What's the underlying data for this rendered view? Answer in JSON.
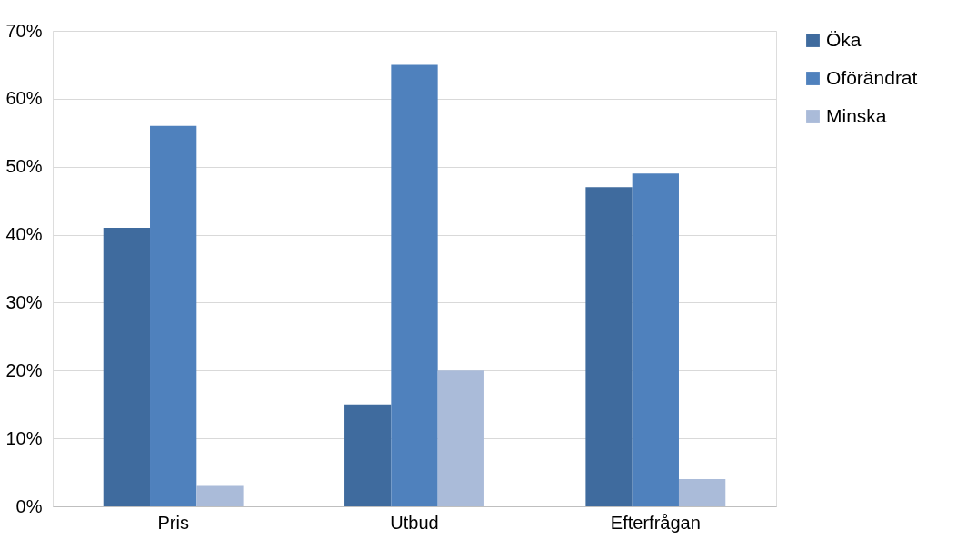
{
  "chart_data": {
    "type": "bar",
    "categories": [
      "Pris",
      "Utbud",
      "Efterfrågan"
    ],
    "series": [
      {
        "name": "Öka",
        "color": "#3f6b9e",
        "values": [
          41,
          15,
          47
        ]
      },
      {
        "name": "Oförändrat",
        "color": "#4f81bd",
        "values": [
          56,
          65,
          49
        ]
      },
      {
        "name": "Minska",
        "color": "#aabbd9",
        "values": [
          3,
          20,
          4
        ]
      }
    ],
    "ylim": [
      0,
      70
    ],
    "yticks": [
      {
        "value": 0,
        "label": "0%"
      },
      {
        "value": 10,
        "label": "10%"
      },
      {
        "value": 20,
        "label": "20%"
      },
      {
        "value": 30,
        "label": "30%"
      },
      {
        "value": 40,
        "label": "40%"
      },
      {
        "value": 50,
        "label": "50%"
      },
      {
        "value": 60,
        "label": "60%"
      },
      {
        "value": 70,
        "label": "70%"
      }
    ],
    "grid": "y",
    "legend": "right"
  }
}
